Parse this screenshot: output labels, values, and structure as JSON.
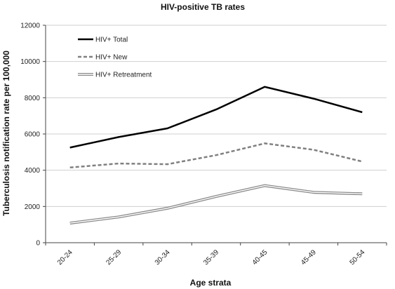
{
  "chart_data": {
    "type": "line",
    "title": "HIV-positive TB rates",
    "xlabel": "Age strata",
    "ylabel": "Tuberculosis notification rate per 100,000",
    "categories": [
      "20-24",
      "25-29",
      "30-34",
      "35-39",
      "40-45",
      "45-49",
      "50-54"
    ],
    "ylim": [
      0,
      12000
    ],
    "yticks": [
      0,
      2000,
      4000,
      6000,
      8000,
      10000,
      12000
    ],
    "grid": true,
    "legend_position": "top-left",
    "series": [
      {
        "name": "HIV+ Total",
        "values": [
          5250,
          5830,
          6310,
          7350,
          8600,
          7950,
          7200
        ],
        "style": "solid-thick",
        "color": "#000000"
      },
      {
        "name": "HIV+ New",
        "values": [
          4150,
          4370,
          4330,
          4830,
          5480,
          5130,
          4480
        ],
        "style": "dashed",
        "color": "#808080"
      },
      {
        "name": "HIV+ Retreatment",
        "values": [
          1080,
          1420,
          1900,
          2550,
          3150,
          2780,
          2700
        ],
        "style": "double",
        "color": "#8a8a8a"
      }
    ]
  }
}
